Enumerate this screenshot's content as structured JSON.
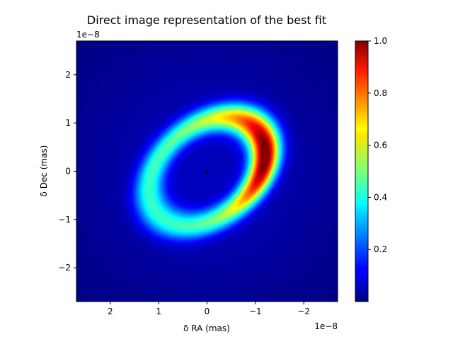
{
  "chart_data": {
    "type": "heatmap",
    "title": "Direct image representation of the best fit",
    "xlabel": "δ RA (mas)",
    "ylabel": "δ Dec (mas)",
    "x_offset_label": "1e−8",
    "y_offset_label": "1e−8",
    "xlim": [
      2.7,
      -2.7
    ],
    "ylim": [
      -2.7,
      2.7
    ],
    "x_scale_exponent": -8,
    "y_scale_exponent": -8,
    "x_ticks": [
      2,
      1,
      0,
      -1,
      -2
    ],
    "x_tick_labels": [
      "2",
      "1",
      "0",
      "−1",
      "−2"
    ],
    "y_ticks": [
      2,
      1,
      0,
      -1,
      -2
    ],
    "y_tick_labels": [
      "2",
      "1",
      "0",
      "−1",
      "−2"
    ],
    "colormap": "jet",
    "colorbar": {
      "range": [
        0.0,
        1.0
      ],
      "ticks": [
        0.2,
        0.4,
        0.6,
        0.8,
        1.0
      ],
      "tick_labels": [
        "0.2",
        "0.4",
        "0.6",
        "0.8",
        "1.0"
      ]
    },
    "image_model": {
      "description_of_shape": "inclined elliptical ring with brightness peaking on the western (right) side",
      "center": [
        0,
        0
      ],
      "ring_semi_major": 1.35,
      "ring_semi_minor": 0.95,
      "ring_position_angle_deg": -40,
      "ring_width": 0.28,
      "asymmetry_peak_x": -1.25,
      "asymmetry_peak_y": 0.35
    },
    "center_marker": {
      "x": 0,
      "y": 0,
      "symbol": "+"
    }
  }
}
